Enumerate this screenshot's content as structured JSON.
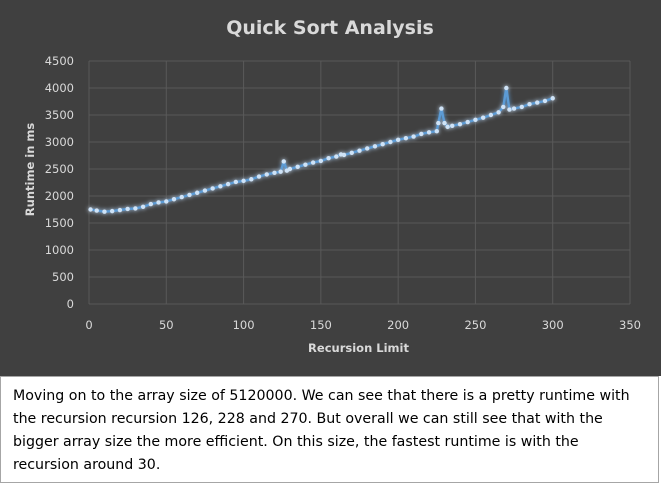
{
  "chart_data": {
    "type": "line",
    "title": "Quick Sort Analysis",
    "xlabel": "Recursion Limit",
    "ylabel": "Runtime in ms",
    "xlim": [
      0,
      350
    ],
    "ylim": [
      0,
      4500
    ],
    "xticks": [
      0,
      50,
      100,
      150,
      200,
      250,
      300,
      350
    ],
    "yticks": [
      0,
      500,
      1000,
      1500,
      2000,
      2500,
      3000,
      3500,
      4000,
      4500
    ],
    "grid": true,
    "legend": "none",
    "series": [
      {
        "color": "#5b9bd5",
        "x": [
          1,
          5,
          10,
          15,
          20,
          25,
          30,
          35,
          40,
          45,
          50,
          55,
          60,
          65,
          70,
          75,
          80,
          85,
          90,
          95,
          100,
          105,
          110,
          115,
          120,
          124,
          126,
          128,
          130,
          135,
          140,
          145,
          150,
          155,
          160,
          163,
          165,
          170,
          175,
          180,
          185,
          190,
          195,
          200,
          205,
          210,
          215,
          220,
          225,
          226,
          228,
          230,
          232,
          235,
          240,
          245,
          250,
          255,
          260,
          265,
          268,
          270,
          272,
          275,
          280,
          285,
          290,
          295,
          300
        ],
        "y": [
          1750,
          1730,
          1710,
          1720,
          1740,
          1760,
          1770,
          1800,
          1850,
          1880,
          1900,
          1940,
          1980,
          2020,
          2060,
          2100,
          2140,
          2180,
          2220,
          2260,
          2280,
          2310,
          2360,
          2400,
          2430,
          2450,
          2640,
          2470,
          2500,
          2540,
          2580,
          2620,
          2650,
          2700,
          2730,
          2770,
          2760,
          2800,
          2840,
          2880,
          2920,
          2960,
          3000,
          3040,
          3070,
          3100,
          3150,
          3180,
          3200,
          3350,
          3620,
          3350,
          3280,
          3300,
          3330,
          3370,
          3410,
          3450,
          3500,
          3550,
          3650,
          4000,
          3600,
          3620,
          3650,
          3700,
          3730,
          3760,
          3810
        ]
      }
    ]
  },
  "caption": {
    "text": "Moving on to the array size of 5120000. We can see that there is a pretty runtime with the recursion recursion 126, 228 and 270. But overall we can still see that with the bigger array size the more efficient. On this size, the fastest runtime is with the recursion around 30."
  },
  "colors": {
    "background": "#404040",
    "grid": "#595959",
    "text": "#d9d9d9",
    "line": "#5b9bd5"
  }
}
